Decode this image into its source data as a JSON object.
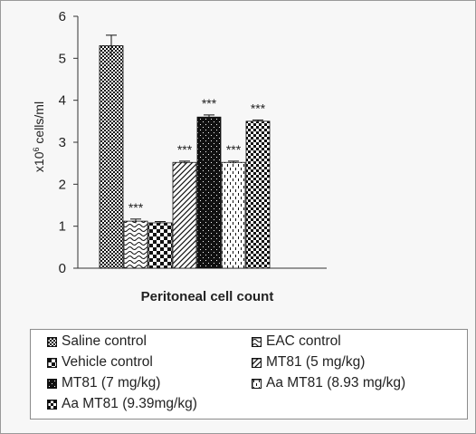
{
  "chart_data": {
    "type": "bar",
    "title": "",
    "xlabel": "Peritoneal cell count",
    "ylabel": "x10",
    "ylabel_sup": "6",
    "ylabel_unit": " cells/ml",
    "ylim": [
      0,
      6
    ],
    "yticks": [
      "0",
      "1",
      "2",
      "3",
      "4",
      "5",
      "6"
    ],
    "grid": false,
    "series": [
      {
        "name": "Saline control",
        "value": 5.3,
        "error": 0.25,
        "annotation": "",
        "pattern": "checker-fine"
      },
      {
        "name": "EAC control",
        "value": 1.12,
        "error": 0.05,
        "annotation": "***",
        "pattern": "wave"
      },
      {
        "name": "Vehicle control",
        "value": 1.08,
        "error": 0.03,
        "annotation": "",
        "pattern": "checker-bold"
      },
      {
        "name": "MT81 (5 mg/kg)",
        "value": 2.52,
        "error": 0.03,
        "annotation": "***",
        "pattern": "diagonal"
      },
      {
        "name": "MT81 (7 mg/kg)",
        "value": 3.6,
        "error": 0.05,
        "annotation": "***",
        "pattern": "dots-on-black"
      },
      {
        "name": "Aa MT81 (8.93 mg/kg)",
        "value": 2.52,
        "error": 0.03,
        "annotation": "***",
        "pattern": "dashes"
      },
      {
        "name": "Aa MT81 (9.39mg/kg)",
        "value": 3.5,
        "error": 0.03,
        "annotation": "***",
        "pattern": "checker-medium"
      }
    ],
    "legend_position": "bottom"
  },
  "legend": {
    "items": [
      "Saline control",
      "EAC control",
      "Vehicle control",
      "MT81 (5 mg/kg)",
      "MT81 (7 mg/kg)",
      "Aa MT81 (8.93 mg/kg)",
      "Aa MT81 (9.39mg/kg)"
    ]
  },
  "colors": {
    "bar_stroke": "#111111",
    "pattern_fg": "#111111",
    "pattern_bg": "#ffffff",
    "frame_bg": "#f7f7f7"
  }
}
